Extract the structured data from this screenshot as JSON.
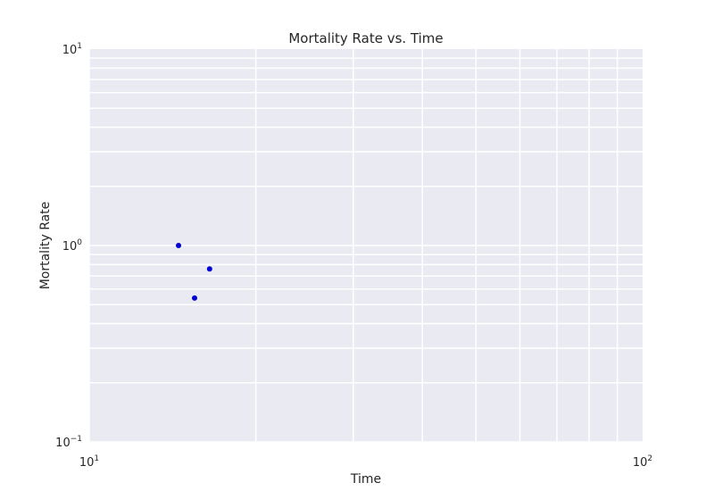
{
  "chart_data": {
    "type": "scatter",
    "title": "Mortality Rate vs. Time",
    "xlabel": "Time",
    "ylabel": "Mortality Rate",
    "xscale": "log",
    "yscale": "log",
    "xlim": [
      10,
      100
    ],
    "ylim": [
      0.1,
      10
    ],
    "grid": true,
    "x_ticks": [
      {
        "value": 10,
        "base": "10",
        "exp": "1"
      },
      {
        "value": 100,
        "base": "10",
        "exp": "2"
      }
    ],
    "y_ticks": [
      {
        "value": 0.1,
        "base": "10",
        "exp": "−1"
      },
      {
        "value": 1,
        "base": "10",
        "exp": "0"
      },
      {
        "value": 10,
        "base": "10",
        "exp": "1"
      }
    ],
    "points": [
      {
        "x": 14.5,
        "y": 1.0
      },
      {
        "x": 15.5,
        "y": 0.54
      },
      {
        "x": 16.5,
        "y": 0.76
      }
    ],
    "colors": {
      "background": "#eaeaf2",
      "grid": "#ffffff",
      "marker": "#0000d4"
    }
  }
}
